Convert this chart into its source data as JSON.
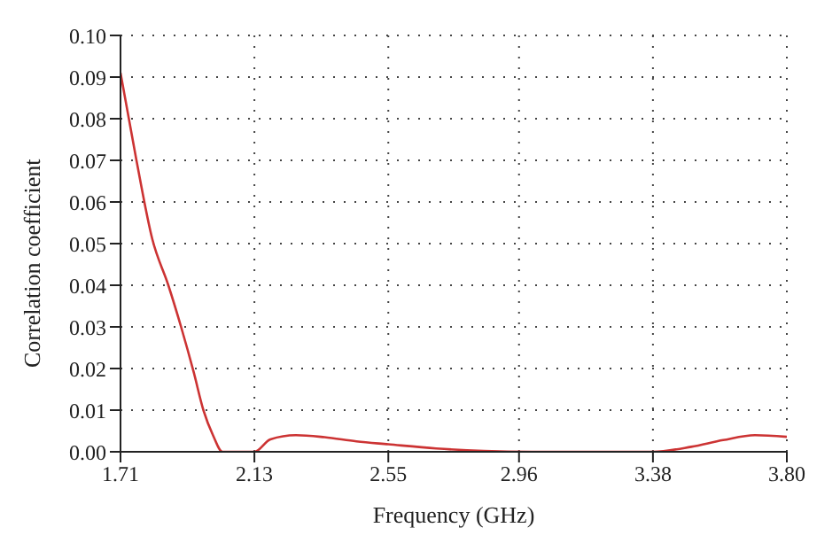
{
  "chart_data": {
    "type": "line",
    "xlabel": "Frequency (GHz)",
    "ylabel": "Correlation coefficient",
    "x": [
      1.71,
      1.76,
      1.81,
      1.86,
      1.9,
      1.94,
      1.97,
      2.0,
      2.03,
      2.13,
      2.18,
      2.26,
      2.35,
      2.45,
      2.55,
      2.7,
      2.85,
      3.0,
      3.2,
      3.38,
      3.5,
      3.6,
      3.7,
      3.8
    ],
    "series": [
      {
        "color": "#cc3333",
        "values": [
          0.091,
          0.07,
          0.051,
          0.04,
          0.03,
          0.019,
          0.01,
          0.004,
          0.0,
          0.0,
          0.003,
          0.004,
          0.0035,
          0.0025,
          0.0018,
          0.0008,
          0.0002,
          0.0,
          0.0,
          0.0,
          0.0012,
          0.0028,
          0.004,
          0.0036
        ]
      }
    ],
    "xlim": [
      1.71,
      3.8
    ],
    "xticks": [
      1.71,
      2.13,
      2.55,
      2.96,
      3.38,
      {
        "value": 3.8,
        "label": "3.80"
      }
    ],
    "ylim": [
      0,
      0.1
    ],
    "yticks": [
      {
        "value": 0,
        "label": "0.00"
      },
      {
        "value": 0.01,
        "label": "0.01"
      },
      {
        "value": 0.02,
        "label": "0.02"
      },
      {
        "value": 0.03,
        "label": "0.03"
      },
      {
        "value": 0.04,
        "label": "0.04"
      },
      {
        "value": 0.05,
        "label": "0.05"
      },
      {
        "value": 0.06,
        "label": "0.06"
      },
      {
        "value": 0.07,
        "label": "0.07"
      },
      {
        "value": 0.08,
        "label": "0.08"
      },
      {
        "value": 0.09,
        "label": "0.09"
      },
      {
        "value": 0.1,
        "label": "0.10"
      }
    ],
    "grid": true,
    "marker": "none",
    "line_style": "solid"
  }
}
